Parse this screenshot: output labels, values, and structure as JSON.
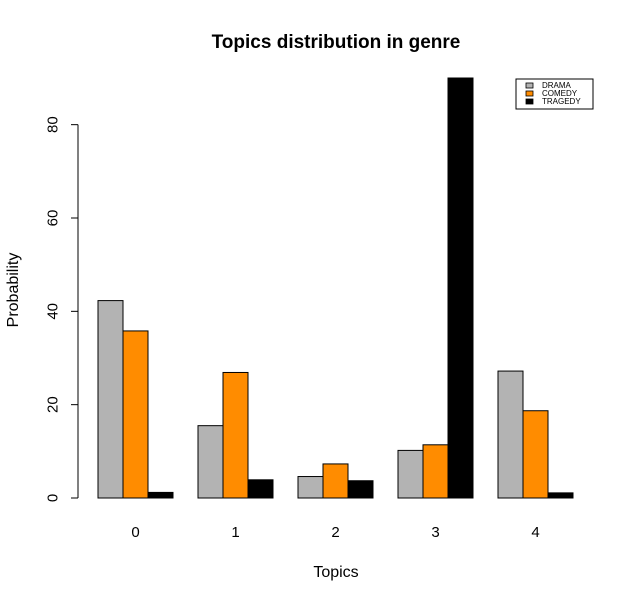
{
  "chart_data": {
    "type": "bar",
    "title": "Topics distribution in genre",
    "xlabel": "Topics",
    "ylabel": "Probability",
    "categories": [
      "0",
      "1",
      "2",
      "3",
      "4"
    ],
    "series": [
      {
        "name": "DRAMA",
        "color": "#b3b3b3",
        "values": [
          42.3,
          15.5,
          4.6,
          10.2,
          27.2
        ]
      },
      {
        "name": "COMEDY",
        "color": "#ff8c00",
        "values": [
          35.8,
          26.9,
          7.3,
          11.4,
          18.7
        ]
      },
      {
        "name": "TRAGEDY",
        "color": "#000000",
        "values": [
          1.2,
          3.9,
          3.7,
          90.0,
          1.1
        ]
      }
    ],
    "ylim": [
      0,
      90
    ],
    "yticks": [
      "0",
      "20",
      "40",
      "60",
      "80"
    ],
    "grid": false,
    "legend_position": "top-right"
  }
}
